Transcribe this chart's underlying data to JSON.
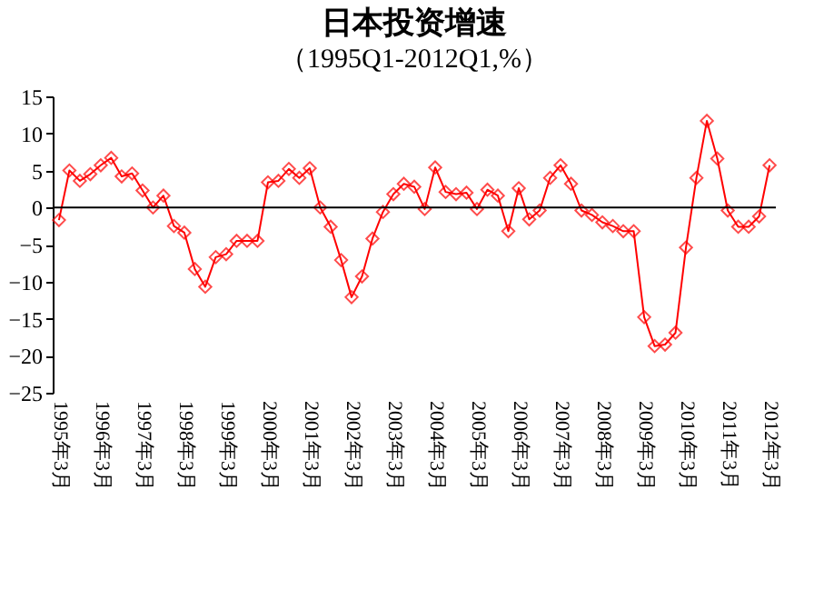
{
  "chart_data": {
    "type": "line",
    "title": "日本投资增速",
    "subtitle": "（1995Q1-2012Q1,%）",
    "categories": [
      "1995年3月",
      null,
      null,
      null,
      "1996年3月",
      null,
      null,
      null,
      "1997年3月",
      null,
      null,
      null,
      "1998年3月",
      null,
      null,
      null,
      "1999年3月",
      null,
      null,
      null,
      "2000年3月",
      null,
      null,
      null,
      "2001年3月",
      null,
      null,
      null,
      "2002年3月",
      null,
      null,
      null,
      "2003年3月",
      null,
      null,
      null,
      "2004年3月",
      null,
      null,
      null,
      "2005年3月",
      null,
      null,
      null,
      "2006年3月",
      null,
      null,
      null,
      "2007年3月",
      null,
      null,
      null,
      "2008年3月",
      null,
      null,
      null,
      "2009年3月",
      null,
      null,
      null,
      "2010年3月",
      null,
      null,
      null,
      "2011年3月",
      null,
      null,
      null,
      "2012年3月"
    ],
    "series": [
      {
        "color": "#ff0000",
        "values": [
          -1.7,
          5.0,
          3.6,
          4.5,
          5.7,
          6.7,
          4.2,
          4.6,
          2.3,
          0,
          1.6,
          -2.5,
          -3.4,
          -8.3,
          -10.7,
          -6.7,
          -6.3,
          -4.5,
          -4.5,
          -4.5,
          3.4,
          3.6,
          5.2,
          4.0,
          5.3,
          0,
          -2.6,
          -7.1,
          -12.1,
          -9.3,
          -4.2,
          -0.6,
          1.8,
          3.2,
          2.8,
          -0.2,
          5.4,
          2.1,
          1.8,
          2.0,
          -0.2,
          2.4,
          1.6,
          -3.2,
          2.6,
          -1.6,
          -0.4,
          4.0,
          5.7,
          3.2,
          -0.4,
          -1.0,
          -2.0,
          -2.5,
          -3.2,
          -3.2,
          -14.8,
          -18.7,
          -18.5,
          -16.9,
          -5.4,
          4.0,
          11.7,
          6.6,
          -0.4,
          -2.6,
          -2.6,
          -1.2,
          5.7
        ]
      }
    ],
    "ylim": [
      -25,
      15
    ],
    "yticks": [
      -25,
      -20,
      -15,
      -10,
      -5,
      0,
      5,
      10,
      15
    ],
    "ref_lines": [
      {
        "axis": "y",
        "value": 0,
        "color": "#000000"
      }
    ],
    "marker": "diamond",
    "line_style": "solid",
    "grid": false
  }
}
